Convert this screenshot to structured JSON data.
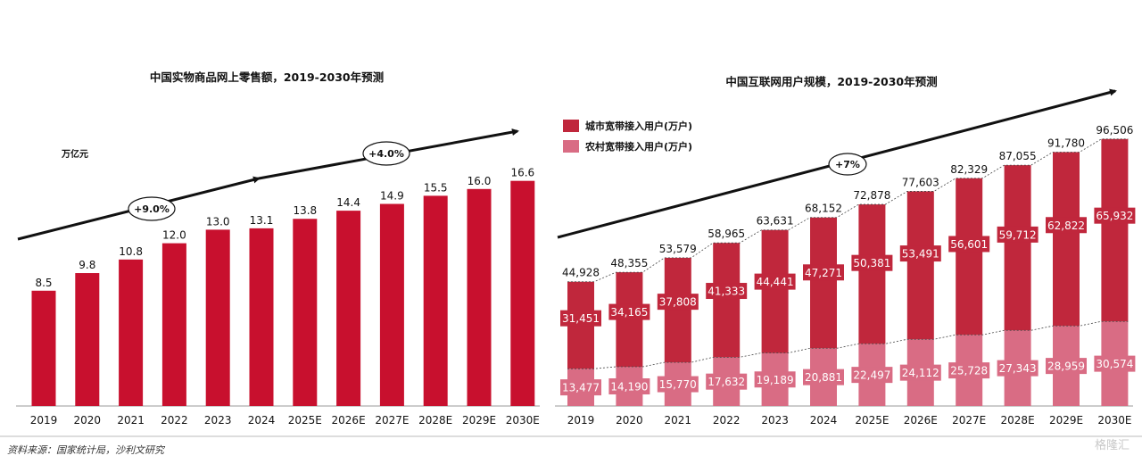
{
  "chart_data": [
    {
      "type": "bar",
      "title": "中国实物商品网上零售额，2019-2030年预测",
      "unit_label": "万亿元",
      "categories": [
        "2019",
        "2020",
        "2021",
        "2022",
        "2023",
        "2024",
        "2025E",
        "2026E",
        "2027E",
        "2028E",
        "2029E",
        "2030E"
      ],
      "values": [
        8.5,
        9.8,
        10.8,
        12.0,
        13.0,
        13.1,
        13.8,
        14.4,
        14.9,
        15.5,
        16.0,
        16.6
      ],
      "value_labels": [
        "8.5",
        "9.8",
        "10.8",
        "12.0",
        "13.0",
        "13.1",
        "13.8",
        "14.4",
        "14.9",
        "15.5",
        "16.0",
        "16.6"
      ],
      "ylim": [
        0,
        20
      ],
      "grid": false,
      "color": "#c8102e",
      "annotations": [
        {
          "text": "+9.0%",
          "type": "growth-oval",
          "from": "2019",
          "to": "2024"
        },
        {
          "text": "+4.0%",
          "type": "growth-oval",
          "from": "2024",
          "to": "2030E"
        }
      ]
    },
    {
      "type": "stacked-bar",
      "title": "中国互联网用户规模，2019-2030年预测",
      "categories": [
        "2019",
        "2020",
        "2021",
        "2022",
        "2023",
        "2024",
        "2025E",
        "2026E",
        "2027E",
        "2028E",
        "2029E",
        "2030E"
      ],
      "ylim": [
        0,
        110000
      ],
      "grid": false,
      "legend_position": "top-left",
      "series": [
        {
          "name": "农村宽带接入用户(万户)",
          "color": "#d96c84",
          "values": [
            13477,
            14190,
            15770,
            17632,
            19189,
            20881,
            22497,
            24112,
            25728,
            27343,
            28959,
            30574
          ]
        },
        {
          "name": "城市宽带接入用户(万户)",
          "color": "#c0273c",
          "values": [
            31451,
            34165,
            37808,
            41333,
            44441,
            47271,
            50381,
            53491,
            56601,
            59712,
            62822,
            65932
          ]
        }
      ],
      "totals": [
        44928,
        48355,
        53579,
        58965,
        63631,
        68152,
        72878,
        77603,
        82329,
        87055,
        91780,
        96506
      ],
      "annotations": [
        {
          "text": "+7%",
          "type": "growth-oval",
          "from": "2019",
          "to": "2030E"
        }
      ]
    }
  ],
  "footer": {
    "source": "资料来源：国家统计局，沙利文研究",
    "watermark": "格隆汇"
  }
}
